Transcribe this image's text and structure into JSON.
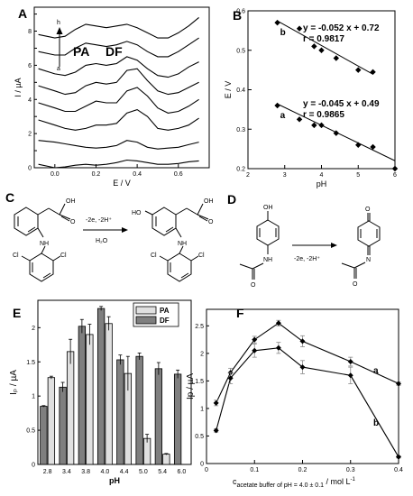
{
  "panels": {
    "A": {
      "letter": "A",
      "peak_label_1": "PA",
      "peak_label_2": "DF",
      "arrow_top": "h",
      "arrow_bottom": "a"
    },
    "B": {
      "letter": "B"
    },
    "C": {
      "letter": "C",
      "reaction_conditions": "-2e, -2H⁺",
      "reaction_solvent": "H₂O",
      "atom_labels": {
        "oh": "OH",
        "o": "O",
        "nh": "NH",
        "cl": "Cl",
        "ho": "HO"
      }
    },
    "D": {
      "letter": "D",
      "reaction_conditions": "-2e, -2H⁺",
      "atom_labels": {
        "oh": "OH",
        "o": "O",
        "nh": "NH",
        "n": "N"
      }
    },
    "E": {
      "letter": "E"
    },
    "F": {
      "letter": "F"
    }
  },
  "chart_data": [
    {
      "panel": "A",
      "type": "line",
      "xlabel": "E / V",
      "ylabel": "I / µA",
      "xlim": [
        -0.1,
        0.75
      ],
      "xticks": [
        0.0,
        0.2,
        0.4,
        0.6
      ],
      "yticks": [
        0,
        1,
        2,
        3,
        4,
        5,
        6,
        7,
        8,
        9
      ],
      "ytick_labels": [
        "0",
        "",
        "2",
        "",
        "4",
        "",
        "6",
        "",
        "8",
        ""
      ],
      "ylim": [
        0,
        9.4
      ],
      "series": [
        {
          "x": [
            -0.08,
            0.0,
            0.05,
            0.1,
            0.15,
            0.2,
            0.25,
            0.3,
            0.35,
            0.4,
            0.45,
            0.5,
            0.55,
            0.6,
            0.65,
            0.7
          ],
          "y": [
            0.2,
            0.0,
            0.05,
            0.15,
            0.2,
            0.15,
            0.2,
            0.3,
            0.45,
            0.4,
            0.3,
            0.2,
            0.2,
            0.25,
            0.35,
            0.4
          ]
        },
        {
          "x": [
            -0.08,
            0.0,
            0.05,
            0.1,
            0.15,
            0.2,
            0.25,
            0.3,
            0.35,
            0.4,
            0.45,
            0.5,
            0.55,
            0.6,
            0.65,
            0.7
          ],
          "y": [
            1.6,
            1.5,
            1.4,
            1.3,
            1.2,
            1.15,
            1.2,
            1.3,
            1.6,
            1.5,
            1.2,
            1.1,
            1.15,
            1.2,
            1.35,
            1.5
          ]
        },
        {
          "x": [
            -0.08,
            0.0,
            0.05,
            0.1,
            0.15,
            0.2,
            0.25,
            0.3,
            0.35,
            0.4,
            0.45,
            0.5,
            0.55,
            0.6,
            0.65,
            0.7
          ],
          "y": [
            2.8,
            2.5,
            2.3,
            2.2,
            2.3,
            2.5,
            2.5,
            2.6,
            3.2,
            3.4,
            3.0,
            2.3,
            2.2,
            2.3,
            2.5,
            2.9
          ]
        },
        {
          "x": [
            -0.08,
            0.0,
            0.05,
            0.1,
            0.15,
            0.2,
            0.25,
            0.3,
            0.35,
            0.4,
            0.45,
            0.5,
            0.55,
            0.6,
            0.65,
            0.7
          ],
          "y": [
            3.8,
            3.5,
            3.3,
            3.3,
            3.6,
            3.9,
            3.8,
            3.8,
            4.5,
            4.7,
            4.2,
            3.5,
            3.2,
            3.3,
            3.6,
            4.0
          ]
        },
        {
          "x": [
            -0.08,
            0.0,
            0.05,
            0.1,
            0.15,
            0.2,
            0.25,
            0.3,
            0.35,
            0.4,
            0.45,
            0.5,
            0.55,
            0.6,
            0.65,
            0.7
          ],
          "y": [
            4.8,
            4.5,
            4.3,
            4.4,
            4.8,
            5.0,
            4.9,
            5.0,
            5.7,
            5.8,
            5.1,
            4.5,
            4.3,
            4.4,
            4.7,
            5.0
          ]
        },
        {
          "x": [
            -0.08,
            0.0,
            0.05,
            0.1,
            0.15,
            0.2,
            0.25,
            0.3,
            0.35,
            0.4,
            0.45,
            0.5,
            0.55,
            0.6,
            0.65,
            0.7
          ],
          "y": [
            5.8,
            5.5,
            5.4,
            5.6,
            6.0,
            6.1,
            6.0,
            6.1,
            6.5,
            6.3,
            5.8,
            5.4,
            5.3,
            5.5,
            5.9,
            6.2
          ]
        },
        {
          "x": [
            -0.08,
            0.0,
            0.05,
            0.1,
            0.15,
            0.2,
            0.25,
            0.3,
            0.35,
            0.4,
            0.45,
            0.5,
            0.55,
            0.6,
            0.65,
            0.7
          ],
          "y": [
            6.8,
            6.6,
            6.6,
            7.0,
            7.3,
            7.2,
            7.1,
            7.2,
            7.4,
            7.2,
            6.8,
            6.5,
            6.5,
            6.8,
            7.2,
            7.6
          ]
        },
        {
          "x": [
            -0.08,
            0.0,
            0.05,
            0.1,
            0.15,
            0.2,
            0.25,
            0.3,
            0.35,
            0.4,
            0.45,
            0.5,
            0.55,
            0.6,
            0.65,
            0.7
          ],
          "y": [
            7.8,
            7.6,
            7.7,
            8.1,
            8.4,
            8.3,
            8.2,
            8.3,
            8.4,
            8.2,
            7.9,
            7.6,
            7.6,
            7.9,
            8.3,
            8.8
          ]
        }
      ]
    },
    {
      "panel": "B",
      "type": "scatter",
      "xlabel": "pH",
      "ylabel": "E / V",
      "xlim": [
        2,
        6
      ],
      "ylim": [
        0.2,
        0.6
      ],
      "xticks": [
        2,
        3,
        4,
        5,
        6
      ],
      "yticks": [
        0.2,
        0.3,
        0.4,
        0.5,
        0.6
      ],
      "series": [
        {
          "name": "b",
          "equation": "y = -0.052 x + 0.72",
          "r": "r = 0.9817",
          "x": [
            2.8,
            3.4,
            3.8,
            4.0,
            4.4,
            5.0,
            5.4
          ],
          "y": [
            0.57,
            0.555,
            0.51,
            0.5,
            0.48,
            0.45,
            0.445
          ],
          "fit": [
            0.72,
            -0.052
          ]
        },
        {
          "name": "a",
          "equation": "y = -0.045 x + 0.49",
          "r": "r = 0.9865",
          "x": [
            2.8,
            3.4,
            3.8,
            4.0,
            4.4,
            5.0,
            5.4,
            6.0
          ],
          "y": [
            0.36,
            0.325,
            0.31,
            0.31,
            0.29,
            0.26,
            0.255,
            0.2
          ],
          "fit": [
            0.49,
            -0.045
          ]
        }
      ]
    },
    {
      "panel": "E",
      "type": "bar",
      "xlabel": "pH",
      "ylabel": "Iₚ / µA",
      "ylim": [
        0,
        2.4
      ],
      "yticks": [
        0,
        0.5,
        1.0,
        1.5,
        2.0
      ],
      "ytick_labels": [
        "0",
        "0.5",
        "1",
        "1.5",
        "2"
      ],
      "categories": [
        "2.8",
        "3.4",
        "3.8",
        "4.0",
        "4.4",
        "5.0",
        "5.4",
        "6.0"
      ],
      "series": [
        {
          "name": "DF",
          "color": "#7f7f7f",
          "values": [
            0.85,
            1.13,
            2.02,
            2.28,
            1.53,
            1.58,
            1.4,
            1.32
          ],
          "errors": [
            0.01,
            0.07,
            0.1,
            0.03,
            0.07,
            0.05,
            0.09,
            0.06
          ]
        },
        {
          "name": "PA",
          "color": "#e0e0e0",
          "values": [
            1.27,
            1.65,
            1.9,
            2.06,
            1.33,
            0.38,
            0.15,
            0.0
          ],
          "errors": [
            0.02,
            0.18,
            0.15,
            0.1,
            0.25,
            0.06,
            0.01,
            0.0
          ]
        }
      ]
    },
    {
      "panel": "F",
      "type": "line",
      "xlabel": "cₐₒₑₜₐₜₑ buffer of pH = 4.0 ± 0.1 / mol L⁻¹",
      "xlabel_main": "c",
      "xlabel_sub": "acetate buffer of pH = 4.0 ± 0.1",
      "xlabel_unit": " / mol L",
      "xlabel_sup": "-1",
      "ylabel": "Ip / µA",
      "xlim": [
        0,
        0.4
      ],
      "ylim": [
        0,
        2.8
      ],
      "xticks": [
        0,
        0.1,
        0.2,
        0.3,
        0.4
      ],
      "yticks": [
        0,
        0.5,
        1.0,
        1.5,
        2.0,
        2.5
      ],
      "ytick_labels": [
        "0",
        "0.5",
        "1",
        "1.5",
        "2",
        "2.5"
      ],
      "series": [
        {
          "name": "a",
          "x": [
            0.02,
            0.05,
            0.1,
            0.15,
            0.2,
            0.3,
            0.4
          ],
          "y": [
            1.1,
            1.65,
            2.25,
            2.55,
            2.22,
            1.85,
            1.45
          ],
          "errors": [
            0.05,
            0.08,
            0.06,
            0.05,
            0.1,
            0.08,
            0.03
          ]
        },
        {
          "name": "b",
          "x": [
            0.02,
            0.05,
            0.1,
            0.15,
            0.2,
            0.3,
            0.4
          ],
          "y": [
            0.6,
            1.55,
            2.05,
            2.1,
            1.75,
            1.6,
            0.12
          ],
          "errors": [
            0.03,
            0.1,
            0.12,
            0.1,
            0.12,
            0.15,
            0.02
          ]
        }
      ]
    }
  ]
}
